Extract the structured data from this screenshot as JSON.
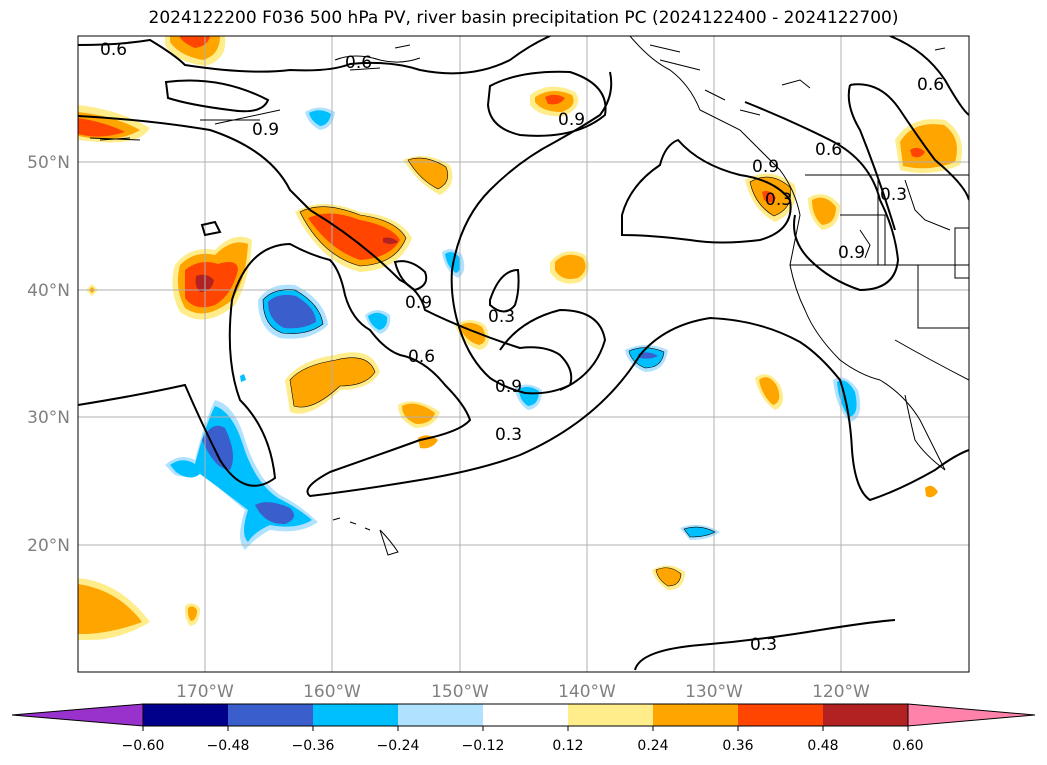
{
  "title": "2024122200 F036 500 hPa PV, river basin precipitation PC (2024122400 - 2024122700)",
  "map": {
    "lon_labels": [
      "170°W",
      "160°W",
      "150°W",
      "140°W",
      "130°W",
      "120°W"
    ],
    "lat_labels": [
      "50°N",
      "40°N",
      "30°N",
      "20°N"
    ],
    "contour_labels": [
      {
        "text": "0.6"
      },
      {
        "text": "0.6"
      },
      {
        "text": "0.9"
      },
      {
        "text": "0.9"
      },
      {
        "text": "0.6"
      },
      {
        "text": "0.9"
      },
      {
        "text": "0.6"
      },
      {
        "text": "0.3"
      },
      {
        "text": "0.9"
      },
      {
        "text": "0.3"
      },
      {
        "text": "0.3"
      },
      {
        "text": "0.9"
      },
      {
        "text": "0.9"
      },
      {
        "text": "0.6"
      },
      {
        "text": "0.3"
      },
      {
        "text": "0.3"
      }
    ]
  },
  "colorbar": {
    "colors": [
      "#9932cc",
      "#00008b",
      "#3a5fcd",
      "#00bfff",
      "#b0e2ff",
      "#ffffff",
      "#ffec8b",
      "#ffa500",
      "#ff4500",
      "#b22222",
      "#ff82ab"
    ],
    "tick_labels": [
      "−0.60",
      "−0.48",
      "−0.36",
      "−0.24",
      "−0.12",
      "0.12",
      "0.24",
      "0.36",
      "0.48",
      "0.60"
    ]
  }
}
